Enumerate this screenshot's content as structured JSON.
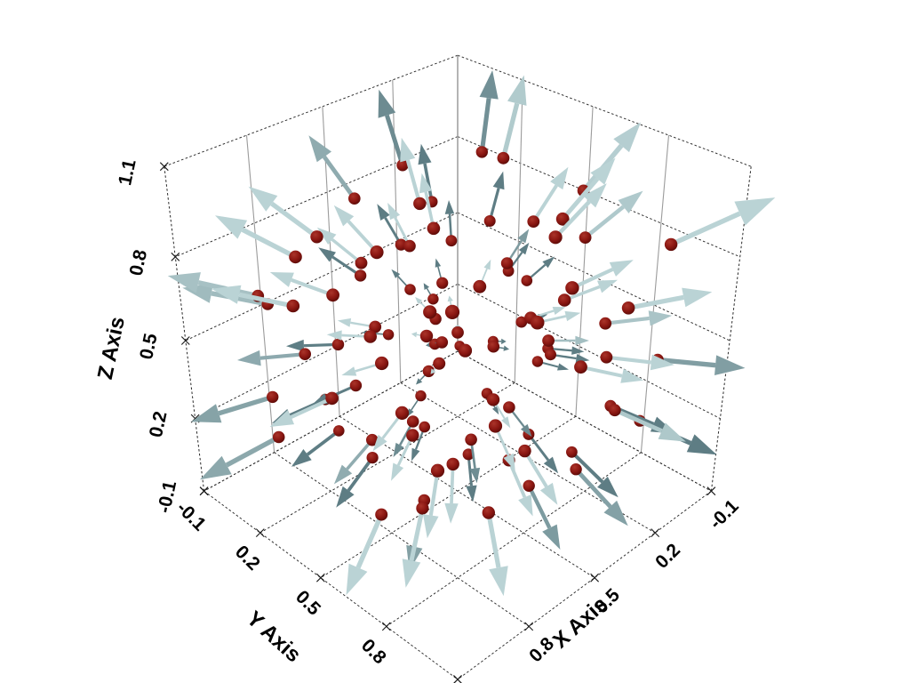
{
  "window": {
    "background": "#ffffff"
  },
  "chart_data": {
    "type": "scatter",
    "subtype": "quiver3d",
    "title": "",
    "description": "3D vector field: dark red points scattered in a unit cube with shaded gray-blue arrows pointing radially outward from the cube center; arrow length proportional to distance from center.",
    "center": [
      0.5,
      0.5,
      0.5
    ],
    "vector_rule": "direction = point - center",
    "arrow_scale": 0.45,
    "bounds": {
      "x": [
        -0.1,
        1.1
      ],
      "y": [
        -0.1,
        1.1
      ],
      "z": [
        -0.1,
        1.1
      ]
    },
    "grid": true,
    "grid_tick_values": [
      -0.1,
      0.2,
      0.5,
      0.8,
      1.1
    ],
    "view": {
      "azimuth_deg": 45,
      "elevation_deg": 33,
      "projection": "perspective"
    },
    "axes": {
      "x": {
        "title": "X Axis",
        "ticks": [
          {
            "v": -0.1,
            "label": "-0.1"
          },
          {
            "v": 0.2,
            "label": "0.2"
          },
          {
            "v": 0.5,
            "label": "0.5"
          },
          {
            "v": 0.8,
            "label": "0.8"
          },
          {
            "v": 1.1,
            "label": ""
          }
        ]
      },
      "y": {
        "title": "Y Axis",
        "ticks": [
          {
            "v": -0.1,
            "label": "-0.1"
          },
          {
            "v": 0.2,
            "label": "0.2"
          },
          {
            "v": 0.5,
            "label": "0.5"
          },
          {
            "v": 0.8,
            "label": "0.8"
          },
          {
            "v": 1.1,
            "label": ""
          }
        ]
      },
      "z": {
        "title": "Z Axis",
        "ticks": [
          {
            "v": -0.1,
            "label": "-0.1"
          },
          {
            "v": 0.2,
            "label": "0.2"
          },
          {
            "v": 0.5,
            "label": "0.5"
          },
          {
            "v": 0.8,
            "label": "0.8"
          },
          {
            "v": 1.1,
            "label": "1.1"
          }
        ]
      }
    },
    "colors": {
      "background": "#ffffff",
      "point_light": "#aa342a",
      "point": "#8b1712",
      "point_dark": "#550a07",
      "arrow_light": "#bad3d5",
      "arrow_dark": "#58787f",
      "grid_line": "#2a2a2a",
      "wall_minor_line": "#9b9b9b",
      "label": "#000000"
    },
    "points": [
      [
        0.07,
        0.62,
        0.91
      ],
      [
        0.83,
        0.15,
        0.44
      ],
      [
        0.35,
        0.88,
        0.12
      ],
      [
        0.52,
        0.31,
        0.77
      ],
      [
        0.96,
        0.74,
        0.58
      ],
      [
        0.21,
        0.09,
        0.35
      ],
      [
        0.64,
        0.95,
        0.83
      ],
      [
        0.48,
        0.53,
        0.06
      ],
      [
        0.12,
        0.27,
        0.69
      ],
      [
        0.79,
        0.41,
        0.22
      ],
      [
        0.3,
        0.7,
        0.5
      ],
      [
        0.88,
        0.86,
        0.93
      ],
      [
        0.05,
        0.44,
        0.18
      ],
      [
        0.57,
        0.13,
        0.61
      ],
      [
        0.73,
        0.58,
        0.04
      ],
      [
        0.26,
        0.97,
        0.72
      ],
      [
        0.91,
        0.24,
        0.86
      ],
      [
        0.43,
        0.66,
        0.29
      ],
      [
        0.16,
        0.81,
        0.55
      ],
      [
        0.68,
        0.05,
        0.14
      ],
      [
        0.54,
        0.38,
        0.95
      ],
      [
        0.02,
        0.92,
        0.4
      ],
      [
        0.85,
        0.49,
        0.67
      ],
      [
        0.38,
        0.2,
        0.08
      ],
      [
        0.61,
        0.76,
        0.46
      ],
      [
        0.94,
        0.11,
        0.31
      ],
      [
        0.23,
        0.56,
        0.84
      ],
      [
        0.76,
        0.89,
        0.19
      ],
      [
        0.1,
        0.34,
        0.52
      ],
      [
        0.49,
        0.99,
        0.63
      ],
      [
        0.82,
        0.63,
        0.37
      ],
      [
        0.33,
        0.08,
        0.9
      ],
      [
        0.66,
        0.46,
        0.25
      ],
      [
        0.18,
        0.72,
        0.01
      ],
      [
        0.97,
        0.29,
        0.74
      ],
      [
        0.45,
        0.84,
        0.98
      ],
      [
        0.71,
        0.17,
        0.43
      ],
      [
        0.08,
        0.51,
        0.28
      ],
      [
        0.59,
        0.68,
        0.81
      ],
      [
        0.87,
        0.03,
        0.59
      ],
      [
        0.28,
        0.42,
        0.15
      ],
      [
        0.63,
        0.91,
        0.36
      ],
      [
        0.14,
        0.25,
        0.94
      ],
      [
        0.92,
        0.59,
        0.1
      ],
      [
        0.4,
        0.14,
        0.66
      ],
      [
        0.75,
        0.78,
        0.71
      ],
      [
        0.04,
        0.37,
        0.47
      ],
      [
        0.55,
        0.61,
        0.2
      ],
      [
        0.81,
        0.22,
        0.88
      ],
      [
        0.25,
        0.94,
        0.33
      ],
      [
        0.69,
        0.33,
        0.56
      ],
      [
        0.11,
        0.67,
        0.78
      ],
      [
        0.93,
        0.85,
        0.42
      ],
      [
        0.36,
        0.02,
        0.24
      ],
      [
        0.58,
        0.48,
        0.92
      ],
      [
        0.86,
        0.71,
        0.16
      ],
      [
        0.19,
        0.16,
        0.6
      ],
      [
        0.47,
        0.79,
        0.07
      ],
      [
        0.72,
        0.26,
        0.32
      ],
      [
        0.09,
        0.98,
        0.87
      ],
      [
        0.62,
        0.54,
        0.49
      ],
      [
        0.9,
        0.39,
        0.79
      ],
      [
        0.31,
        0.64,
        0.11
      ],
      [
        0.53,
        0.07,
        0.85
      ],
      [
        0.78,
        0.93,
        0.54
      ],
      [
        0.15,
        0.45,
        0.39
      ],
      [
        0.98,
        0.18,
        0.21
      ],
      [
        0.42,
        0.73,
        0.65
      ],
      [
        0.67,
        0.1,
        0.03
      ],
      [
        0.22,
        0.87,
        0.48
      ],
      [
        0.84,
        0.52,
        0.96
      ],
      [
        0.37,
        0.3,
        0.57
      ],
      [
        0.6,
        0.82,
        0.26
      ],
      [
        0.01,
        0.19,
        0.13
      ],
      [
        0.95,
        0.65,
        0.7
      ],
      [
        0.29,
        0.06,
        0.41
      ],
      [
        0.51,
        0.96,
        0.89
      ],
      [
        0.74,
        0.35,
        0.09
      ],
      [
        0.17,
        0.6,
        0.34
      ],
      [
        0.89,
        0.01,
        0.62
      ],
      [
        0.34,
        0.77,
        0.97
      ],
      [
        0.65,
        0.23,
        0.73
      ],
      [
        0.06,
        0.9,
        0.17
      ],
      [
        0.56,
        0.43,
        0.38
      ],
      [
        0.8,
        0.69,
        0.82
      ],
      [
        0.24,
        0.12,
        0.75
      ],
      [
        0.7,
        0.57,
        0.64
      ],
      [
        0.13,
        0.83,
        0.23
      ],
      [
        0.99,
        0.47,
        0.51
      ],
      [
        0.44,
        0.28,
        0.02
      ],
      [
        0.77,
        0.75,
        0.3
      ],
      [
        0.2,
        0.4,
        0.99
      ],
      [
        0.5,
        0.5,
        0.53
      ],
      [
        0.39,
        0.55,
        0.45
      ],
      [
        0.46,
        0.36,
        0.5
      ],
      [
        0.32,
        0.21,
        0.27
      ],
      [
        0.41,
        0.85,
        0.76
      ],
      [
        0.27,
        0.49,
        0.68
      ],
      [
        0.03,
        0.04,
        0.05
      ],
      [
        0.52,
        0.45,
        0.48
      ]
    ]
  }
}
